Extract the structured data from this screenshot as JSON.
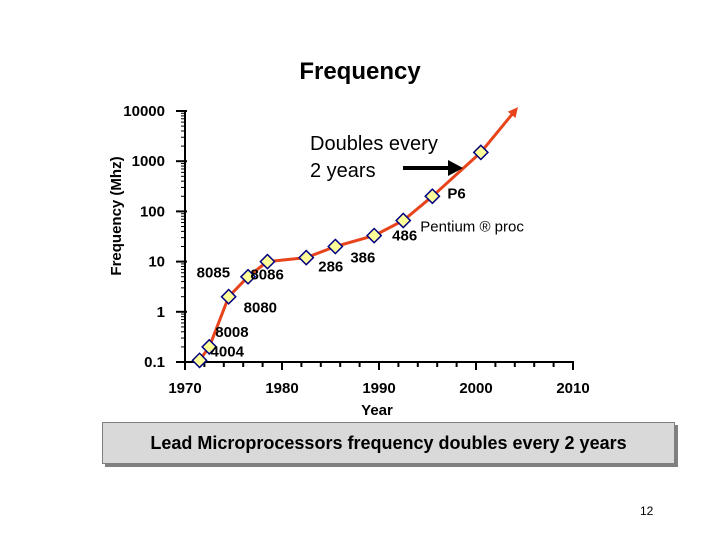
{
  "chart_data": {
    "type": "line",
    "title": "Frequency",
    "xlabel": "Year",
    "ylabel": "Frequency (Mhz)",
    "xlim": [
      1970,
      2010
    ],
    "ylim": [
      0.1,
      10000
    ],
    "yscale": "log",
    "x_ticks": [
      "1970",
      "1980",
      "1990",
      "2000",
      "2010"
    ],
    "y_ticks": [
      "10000",
      "1000",
      "100",
      "10",
      "1",
      "0.1"
    ],
    "series": [
      {
        "points": [
          {
            "x": 1971.5,
            "y": 0.108,
            "label": "4004"
          },
          {
            "x": 1972.5,
            "y": 0.2,
            "label": "8008"
          },
          {
            "x": 1974.5,
            "y": 2,
            "label": "8080"
          },
          {
            "x": 1976.5,
            "y": 5,
            "label": "8085"
          },
          {
            "x": 1978.5,
            "y": 10,
            "label": "8086"
          },
          {
            "x": 1982.5,
            "y": 12,
            "label": "286"
          },
          {
            "x": 1985.5,
            "y": 20,
            "label": "386"
          },
          {
            "x": 1989.5,
            "y": 33,
            "label": "486"
          },
          {
            "x": 1992.5,
            "y": 66,
            "label": "Pentium ® proc"
          },
          {
            "x": 1995.5,
            "y": 200,
            "label": "P6"
          },
          {
            "x": 2000.5,
            "y": 1500,
            "label": ""
          }
        ],
        "projection_end": {
          "x": 2004,
          "y": 10000
        }
      }
    ],
    "annotation": "Doubles every 2 years",
    "annotation_lines": [
      "Doubles every",
      "2 years"
    ]
  },
  "caption": "Lead Microprocessors frequency doubles every 2 years",
  "page_number": "12",
  "colors": {
    "line": "#e8441c",
    "marker_fill": "#ffff99",
    "marker_stroke": "#000080",
    "axis": "#000000",
    "banner_bg": "#d9d9d9"
  }
}
